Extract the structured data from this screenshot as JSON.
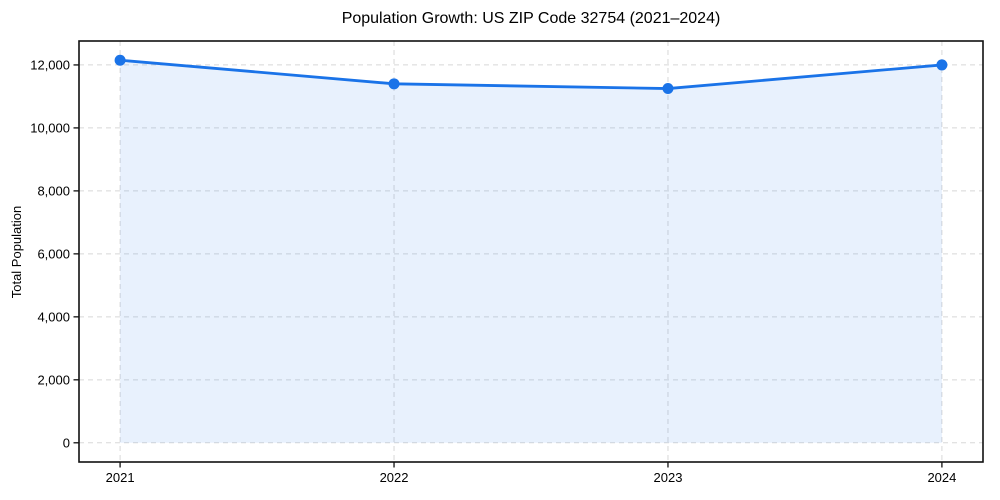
{
  "chart_data": {
    "type": "line",
    "title": "Population Growth: US ZIP Code 32754 (2021–2024)",
    "xlabel": "",
    "ylabel": "Total Population",
    "x": [
      2021,
      2022,
      2023,
      2024
    ],
    "x_tick_labels": [
      "2021",
      "2022",
      "2023",
      "2024"
    ],
    "series": [
      {
        "name": "Total Population",
        "values": [
          12150,
          11400,
          11250,
          12000
        ]
      }
    ],
    "y_ticks": [
      0,
      2000,
      4000,
      6000,
      8000,
      10000,
      12000
    ],
    "y_tick_labels": [
      "0",
      "2,000",
      "4,000",
      "6,000",
      "8,000",
      "10,000",
      "12,000"
    ],
    "xlim": [
      2020.85,
      2024.15
    ],
    "ylim": [
      -610,
      12760
    ],
    "grid": true,
    "grid_style": "dashed",
    "legend": "none",
    "marker": "circle",
    "area_fill": true,
    "area_fill_baseline": 0,
    "area_fill_opacity": 0.1,
    "colors": {
      "line": "#1a73e8",
      "marker": "#1a73e8",
      "grid": "#d8d8d8",
      "spine": "#111111",
      "tick": "#111111",
      "text": "#000000",
      "background": "#ffffff"
    }
  }
}
